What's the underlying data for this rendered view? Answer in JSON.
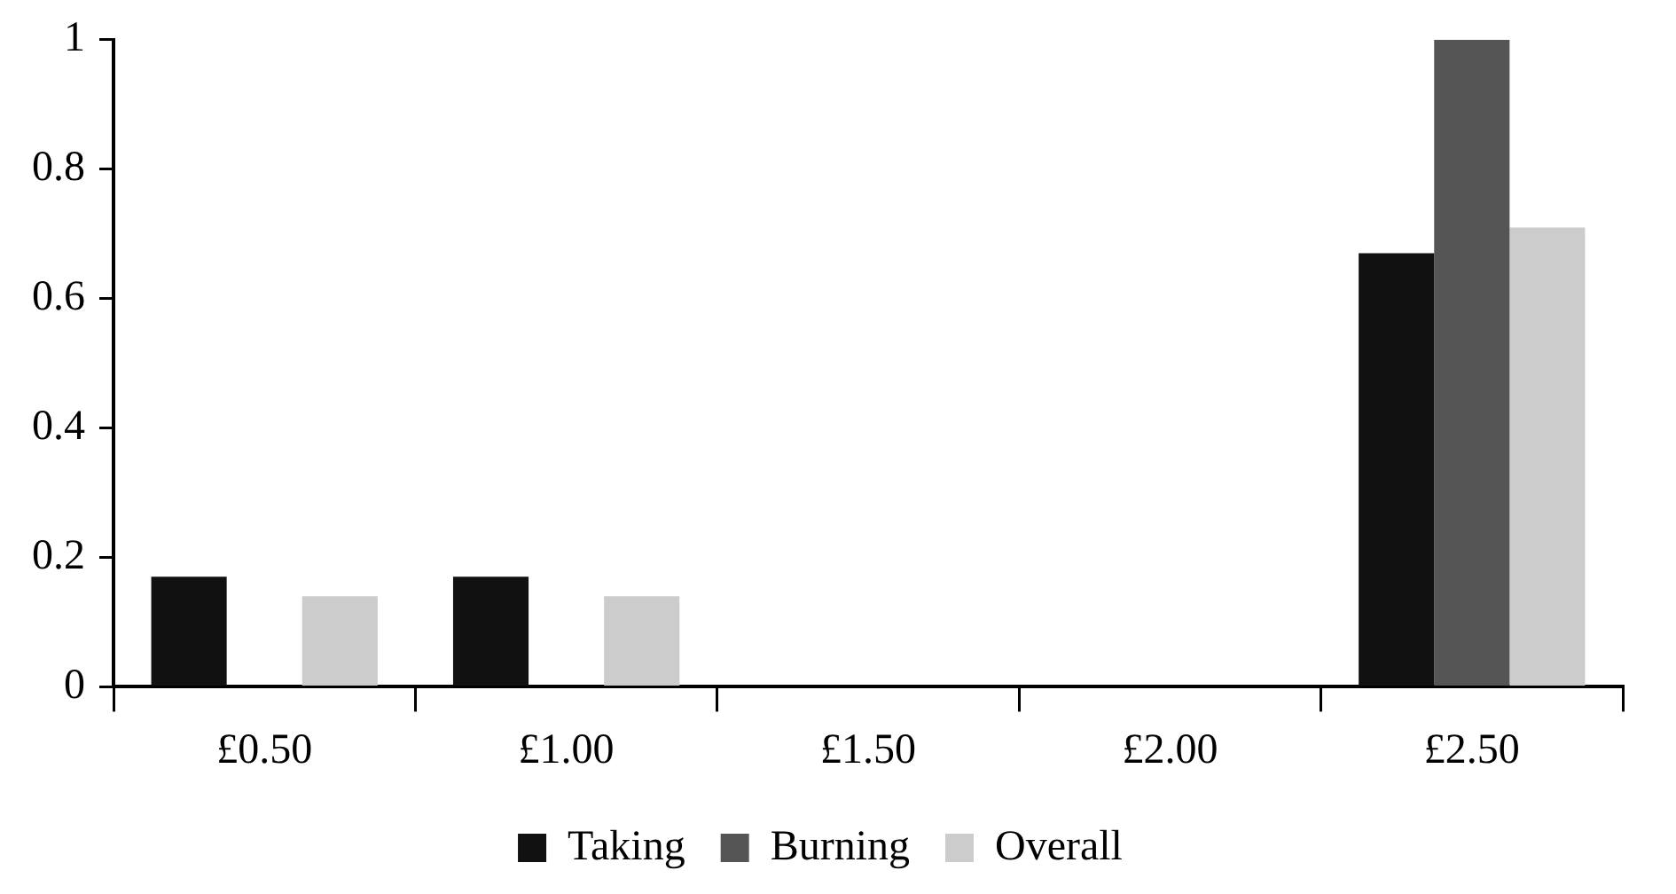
{
  "chart_data": {
    "type": "bar",
    "categories": [
      "£0.50",
      "£1.00",
      "£1.50",
      "£2.00",
      "£2.50"
    ],
    "series": [
      {
        "name": "Taking",
        "color": "#111111",
        "values": [
          0.17,
          0.17,
          0,
          0,
          0.67
        ]
      },
      {
        "name": "Burning",
        "color": "#555555",
        "values": [
          0,
          0,
          0,
          0,
          1
        ]
      },
      {
        "name": "Overall",
        "color": "#cccccc",
        "values": [
          0.14,
          0.14,
          0,
          0,
          0.71
        ]
      }
    ],
    "ylim": [
      0,
      1
    ],
    "yticks": [
      0,
      0.2,
      0.4,
      0.6,
      0.8,
      1
    ],
    "grid": false,
    "legend": "bottom"
  }
}
